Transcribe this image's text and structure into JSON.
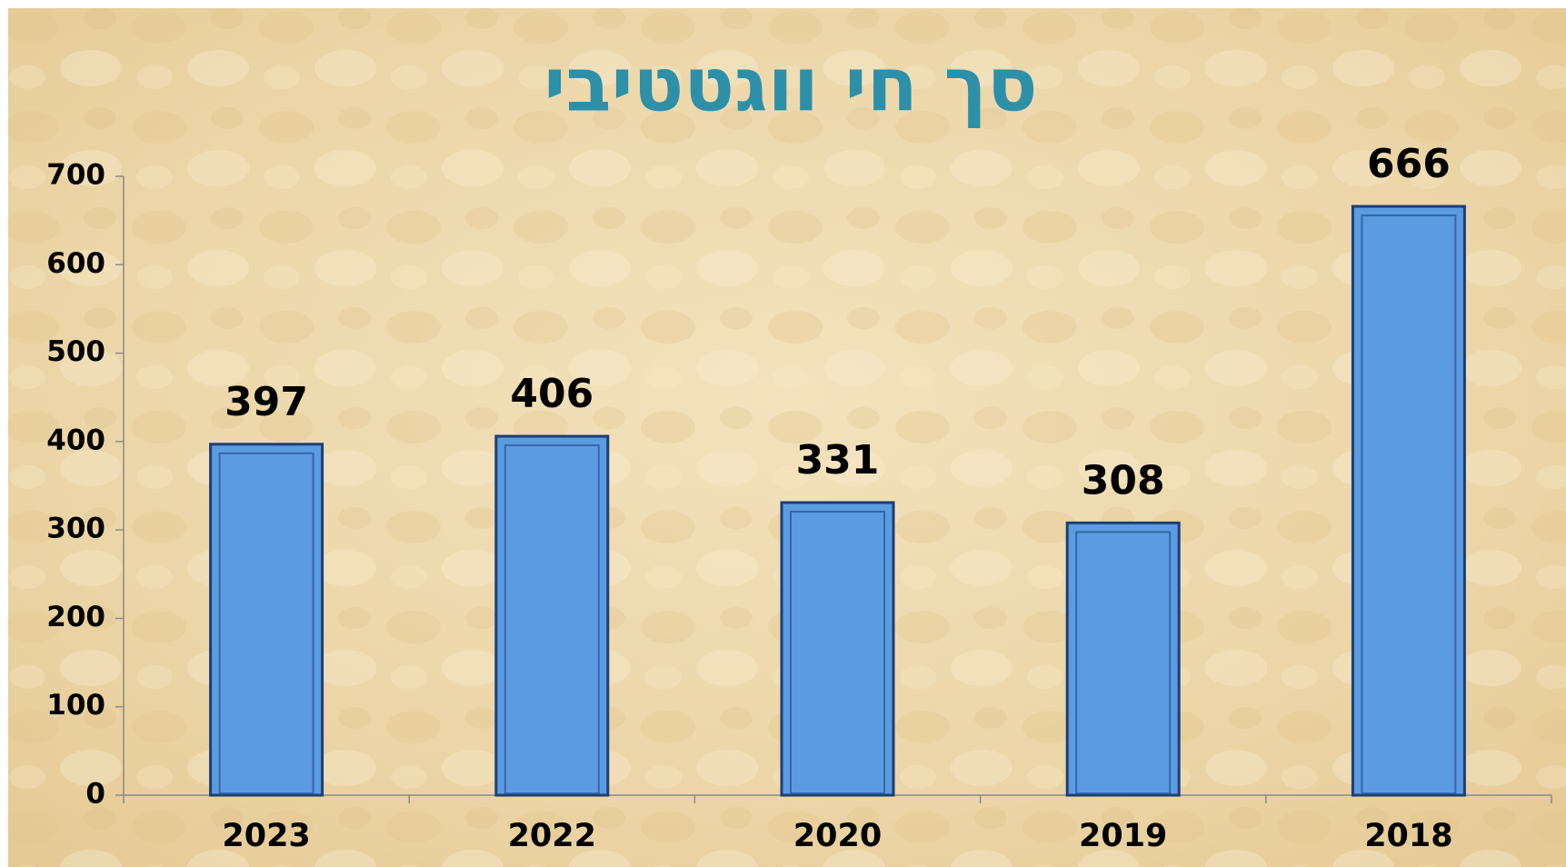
{
  "chart_data": {
    "type": "bar",
    "title": "סך חי ווגטטיבי",
    "categories": [
      "2023",
      "2022",
      "2020",
      "2019",
      "2018"
    ],
    "values": [
      397,
      406,
      331,
      308,
      666
    ],
    "color": "#5b9be0",
    "ylim": [
      0,
      700
    ],
    "yticks": [
      0,
      100,
      200,
      300,
      400,
      500,
      600,
      700
    ],
    "grid": false
  }
}
